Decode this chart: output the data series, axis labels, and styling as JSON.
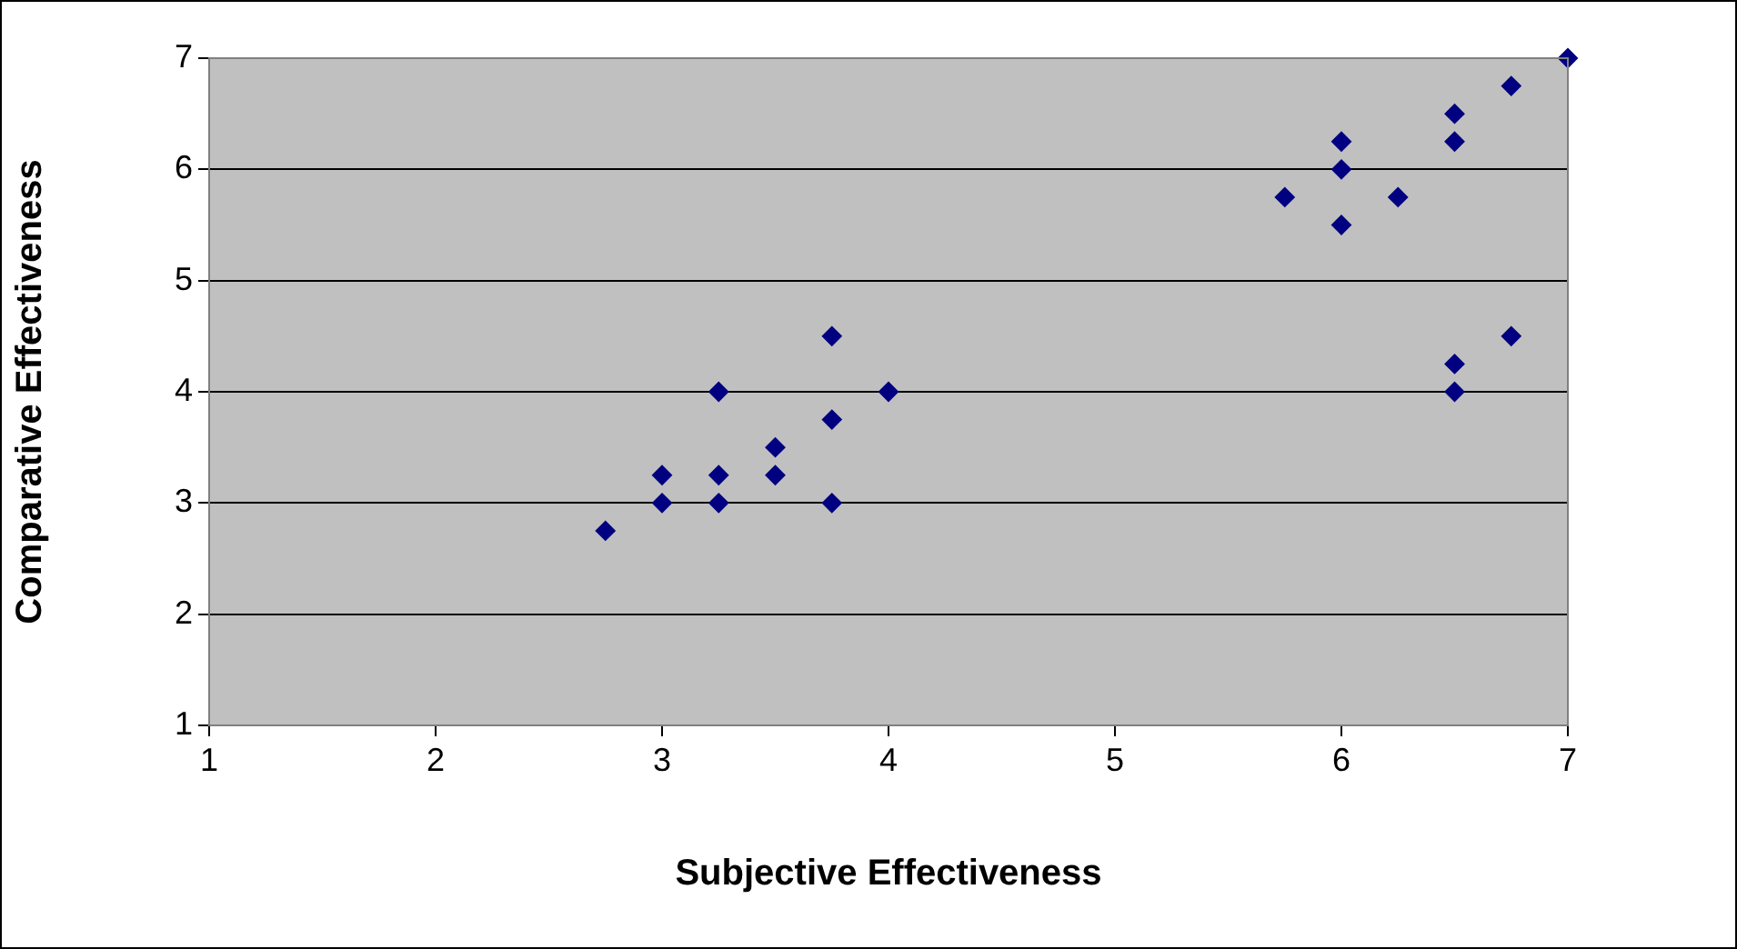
{
  "chart_data": {
    "type": "scatter",
    "xlabel": "Subjective Effectiveness",
    "ylabel": "Comparative Effectiveness",
    "x": [
      2.75,
      3,
      3,
      3.25,
      3.25,
      3.25,
      3.5,
      3.5,
      3.75,
      3.75,
      3.75,
      4,
      5.75,
      6,
      6,
      6,
      6.25,
      6.5,
      6.5,
      6.5,
      6.5,
      6.75,
      6.75,
      7
    ],
    "series": [
      {
        "color": "#000080",
        "values": [
          2.75,
          3.25,
          3,
          4,
          3.25,
          3,
          3.5,
          3.25,
          4.5,
          3.75,
          3,
          4,
          5.75,
          6.25,
          6,
          5.5,
          5.75,
          6.5,
          6.25,
          4.25,
          4,
          6.75,
          4.5,
          7
        ]
      }
    ],
    "xlim": [
      1,
      7
    ],
    "xticks": [
      1,
      2,
      3,
      4,
      5,
      6,
      7
    ],
    "ylim": [
      1,
      7
    ],
    "yticks": [
      1,
      2,
      3,
      4,
      5,
      6,
      7
    ],
    "grid": "y",
    "legend": false,
    "marker": "diamond"
  }
}
